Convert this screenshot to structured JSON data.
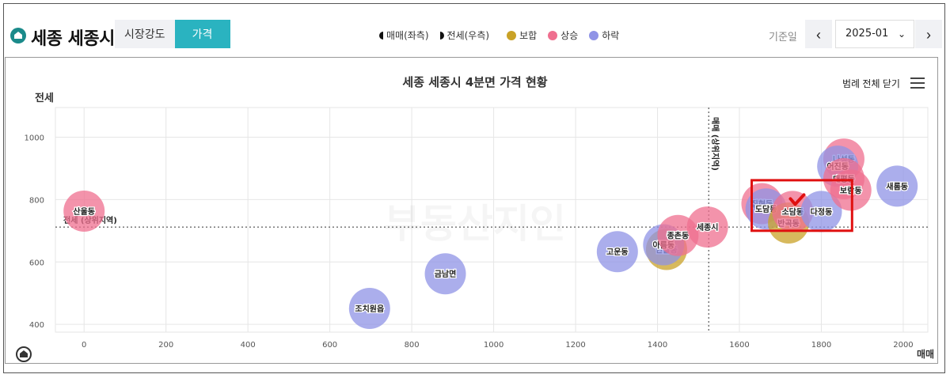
{
  "header": {
    "city": "세종 세종시",
    "tabs": [
      {
        "label": "시장강도",
        "active": false
      },
      {
        "label": "가격",
        "active": true
      }
    ],
    "legend": [
      {
        "label": "매매(좌측)",
        "icon": "left-half-circle-icon"
      },
      {
        "label": "전세(우측)",
        "icon": "right-half-circle-icon"
      },
      {
        "label": "보합",
        "color": "#c9a227"
      },
      {
        "label": "상승",
        "color": "#ef6f8f"
      },
      {
        "label": "하락",
        "color": "#8f93e6"
      }
    ],
    "date_label": "기준일",
    "date_value": "2025-01",
    "prev_icon": "‹",
    "next_icon": "›",
    "dropdown_icon": "⌄"
  },
  "toolbar": {
    "legend_toggle": "범례 전체 닫기"
  },
  "chart_data": {
    "type": "scatter",
    "title": "세종 세종시 4분면 가격 현황",
    "xlabel": "매매",
    "ylabel": "전세",
    "xlim": [
      -70,
      2060
    ],
    "ylim": [
      375,
      1095
    ],
    "xticks": [
      0,
      200,
      400,
      600,
      800,
      1000,
      1200,
      1400,
      1600,
      1800,
      2000
    ],
    "yticks": [
      400,
      600,
      800,
      1000
    ],
    "grid": true,
    "ref_lines": {
      "x": 1525,
      "y": 712,
      "x_label": "매매 (상위지역)",
      "y_label": "전세 (상위지역)"
    },
    "watermark": "부동산지인",
    "points": [
      {
        "name": "산울동",
        "x": 0,
        "y": 763,
        "status": "상승"
      },
      {
        "name": "조치원읍",
        "x": 697,
        "y": 451,
        "status": "하락"
      },
      {
        "name": "금남면",
        "x": 882,
        "y": 562,
        "status": "하락"
      },
      {
        "name": "고운동",
        "x": 1302,
        "y": 633,
        "status": "하락"
      },
      {
        "name": "한솔동",
        "x": 1422,
        "y": 640,
        "status": "보합"
      },
      {
        "name": "아름동",
        "x": 1415,
        "y": 655,
        "status": "하락"
      },
      {
        "name": "종촌동",
        "x": 1450,
        "y": 685,
        "status": "상승"
      },
      {
        "name": "세종시",
        "x": 1522,
        "y": 712,
        "status": "상승"
      },
      {
        "name": "집현동",
        "x": 1655,
        "y": 787,
        "status": "상승"
      },
      {
        "name": "도담동",
        "x": 1665,
        "y": 770,
        "status": "하락"
      },
      {
        "name": "반곡동",
        "x": 1720,
        "y": 725,
        "status": "보합"
      },
      {
        "name": "소담동",
        "x": 1730,
        "y": 762,
        "status": "상승"
      },
      {
        "name": "다정동",
        "x": 1800,
        "y": 762,
        "status": "하락"
      },
      {
        "name": "나성동",
        "x": 1855,
        "y": 930,
        "status": "상승"
      },
      {
        "name": "어진동",
        "x": 1840,
        "y": 907,
        "status": "하락"
      },
      {
        "name": "대평동",
        "x": 1855,
        "y": 867,
        "status": "상승"
      },
      {
        "name": "보람동",
        "x": 1872,
        "y": 830,
        "status": "상승"
      },
      {
        "name": "새롬동",
        "x": 1985,
        "y": 843,
        "status": "하락"
      }
    ],
    "status_colors": {
      "상승": "#ef6f8f",
      "하락": "#8f93e6",
      "보합": "#c9a227"
    },
    "highlight_box": {
      "x": [
        1630,
        1875
      ],
      "y": [
        700,
        862
      ],
      "color": "#e01010"
    },
    "selected_marker": {
      "x": 1740,
      "y": 795,
      "icon": "check-mark-icon",
      "color": "#e01010"
    }
  }
}
